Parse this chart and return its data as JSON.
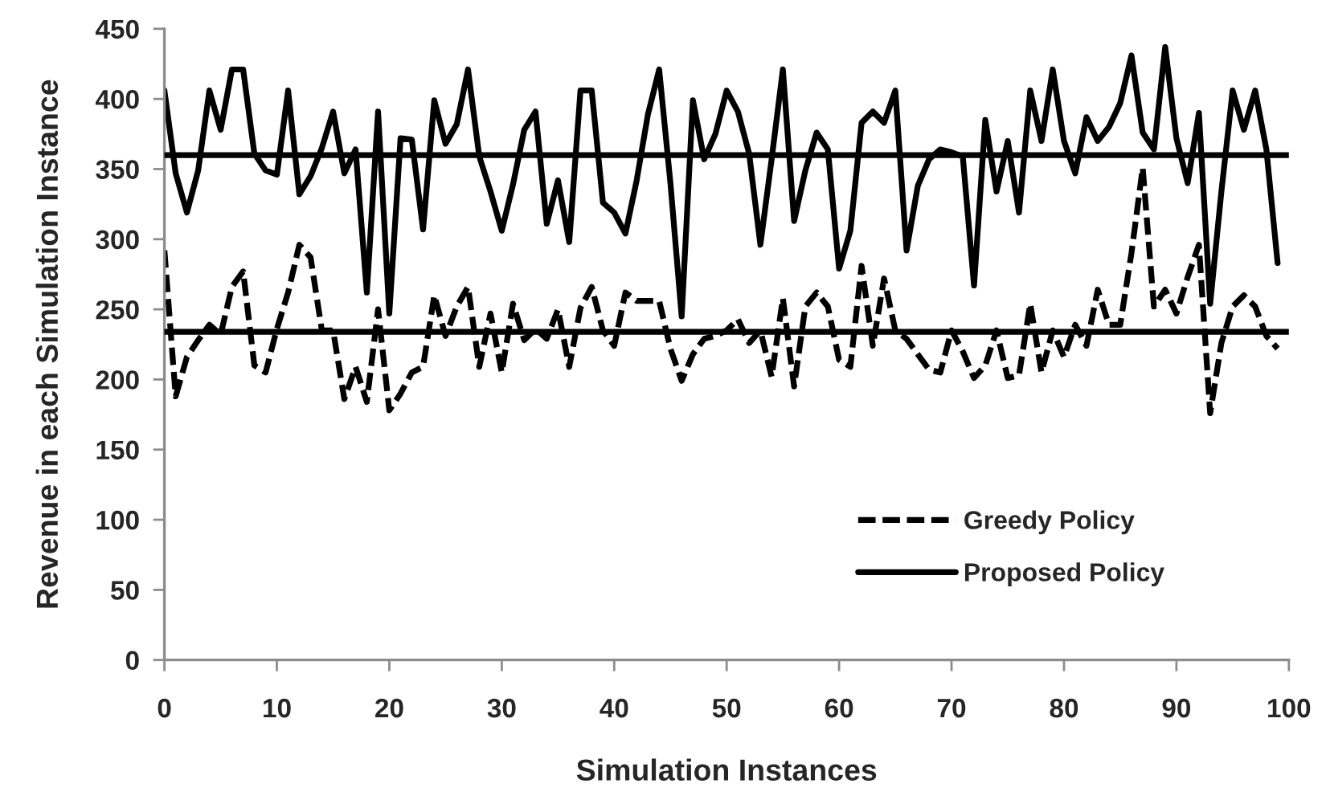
{
  "chart_data": {
    "type": "line",
    "xlabel": "Simulation Instances",
    "ylabel": "Revenue in each Simulation Instance",
    "x": [
      0,
      1,
      2,
      3,
      4,
      5,
      6,
      7,
      8,
      9,
      10,
      11,
      12,
      13,
      14,
      15,
      16,
      17,
      18,
      19,
      20,
      21,
      22,
      23,
      24,
      25,
      26,
      27,
      28,
      29,
      30,
      31,
      32,
      33,
      34,
      35,
      36,
      37,
      38,
      39,
      40,
      41,
      42,
      43,
      44,
      45,
      46,
      47,
      48,
      49,
      50,
      51,
      52,
      53,
      54,
      55,
      56,
      57,
      58,
      59,
      60,
      61,
      62,
      63,
      64,
      65,
      66,
      67,
      68,
      69,
      70,
      71,
      72,
      73,
      74,
      75,
      76,
      77,
      78,
      79,
      80,
      81,
      82,
      83,
      84,
      85,
      86,
      87,
      88,
      89,
      90,
      91,
      92,
      93,
      94,
      95,
      96,
      97,
      98,
      99
    ],
    "series": [
      {
        "name": "Greedy Policy",
        "color": "#000000",
        "line_style": "dashed",
        "values": [
          292,
          188,
          216,
          228,
          239,
          232,
          266,
          277,
          210,
          205,
          236,
          262,
          296,
          287,
          235,
          235,
          186,
          209,
          184,
          250,
          178,
          190,
          205,
          209,
          260,
          231,
          252,
          266,
          209,
          247,
          205,
          254,
          228,
          236,
          229,
          250,
          209,
          251,
          266,
          235,
          224,
          262,
          256,
          256,
          256,
          222,
          199,
          218,
          229,
          231,
          235,
          243,
          226,
          235,
          202,
          258,
          195,
          252,
          262,
          252,
          214,
          209,
          281,
          224,
          272,
          235,
          229,
          218,
          207,
          205,
          235,
          220,
          201,
          210,
          235,
          201,
          203,
          254,
          205,
          235,
          216,
          239,
          224,
          264,
          239,
          239,
          290,
          351,
          252,
          264,
          247,
          273,
          296,
          176,
          226,
          252,
          260,
          252,
          231,
          222
        ]
      },
      {
        "name": "Proposed Policy",
        "color": "#000000",
        "line_style": "solid",
        "values": [
          406,
          347,
          319,
          349,
          406,
          378,
          421,
          421,
          361,
          349,
          346,
          406,
          332,
          345,
          365,
          391,
          347,
          364,
          262,
          391,
          247,
          372,
          371,
          307,
          399,
          368,
          382,
          421,
          359,
          334,
          306,
          339,
          378,
          391,
          311,
          342,
          298,
          406,
          406,
          326,
          319,
          304,
          342,
          389,
          421,
          340,
          245,
          399,
          357,
          375,
          406,
          391,
          361,
          296,
          357,
          421,
          313,
          349,
          376,
          364,
          279,
          306,
          383,
          391,
          383,
          406,
          292,
          338,
          357,
          364,
          362,
          359,
          267,
          385,
          334,
          370,
          319,
          406,
          370,
          421,
          370,
          347,
          387,
          370,
          380,
          397,
          431,
          376,
          364,
          437,
          372,
          340,
          390,
          254,
          334,
          406,
          378,
          406,
          364,
          283
        ]
      }
    ],
    "ref_lines": [
      {
        "axis": "y",
        "value": 360,
        "color": "#000000",
        "line_style": "solid"
      },
      {
        "axis": "y",
        "value": 234,
        "color": "#000000",
        "line_style": "solid"
      }
    ],
    "xlim": [
      0,
      100
    ],
    "xticks": [
      0,
      10,
      20,
      30,
      40,
      50,
      60,
      70,
      80,
      90,
      100
    ],
    "ylim": [
      0,
      450
    ],
    "yticks": [
      0,
      50,
      100,
      150,
      200,
      250,
      300,
      350,
      400,
      450
    ],
    "legend": "bottom right"
  }
}
